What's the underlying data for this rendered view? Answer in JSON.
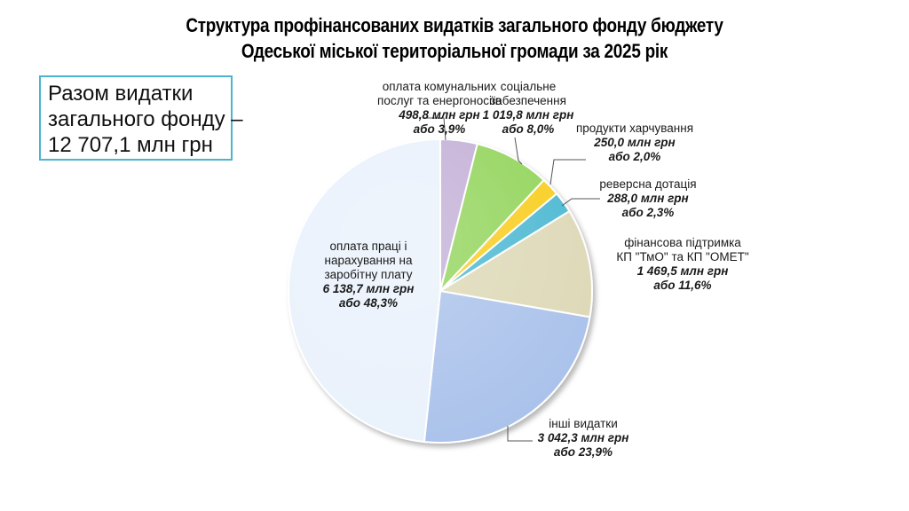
{
  "title": {
    "line1": "Структура профінансованих видатків загального фонду бюджету",
    "line2": "Одеської міської територіальної громади за 2025 рік"
  },
  "total": {
    "line1": "Разом видатки",
    "line2": "загального фонду –",
    "line3": "12 707,1 млн грн"
  },
  "chart_data": {
    "type": "pie",
    "title": "Структура профінансованих видатків загального фонду бюджету Одеської міської територіальної громади за 2025 рік",
    "unit": "млн грн",
    "slices": [
      {
        "name_lines": [
          "оплата комунальних",
          "послуг та енергоносіїв"
        ],
        "value": 498.8,
        "percent": 3.9,
        "value_text": "498,8 млн грн",
        "percent_text": "або 3,9%",
        "color": "#c3afd6"
      },
      {
        "name_lines": [
          "соціальне",
          "забезпечення"
        ],
        "value": 1019.8,
        "percent": 8.0,
        "value_text": "1 019,8 млн грн",
        "percent_text": "або 8,0%",
        "color": "#92d45a"
      },
      {
        "name_lines": [
          "продукти харчування"
        ],
        "value": 250.0,
        "percent": 2.0,
        "value_text": "250,0 млн грн",
        "percent_text": "або 2,0%",
        "color": "#f8cd1e"
      },
      {
        "name_lines": [
          "реверсна дотація"
        ],
        "value": 288.0,
        "percent": 2.3,
        "value_text": "288,0 млн грн",
        "percent_text": "або 2,3%",
        "color": "#4bb8d2"
      },
      {
        "name_lines": [
          "фінансова підтримка",
          "КП \"ТмО\" та КП \"ОМЕТ\""
        ],
        "value": 1469.5,
        "percent": 11.6,
        "value_text": "1 469,5 млн грн",
        "percent_text": "або 11,6%",
        "color": "#ddd8b6"
      },
      {
        "name_lines": [
          "інші видатки"
        ],
        "value": 3042.3,
        "percent": 23.9,
        "value_text": "3 042,3 млн грн",
        "percent_text": "або 23,9%",
        "color": "#a9c1ea"
      },
      {
        "name_lines": [
          "оплата праці і",
          "нарахування на",
          "заробітну плату"
        ],
        "value": 6138.7,
        "percent": 48.3,
        "value_text": "6 138,7 млн грн",
        "percent_text": "або 48,3%",
        "color": "#e9f1fb"
      }
    ]
  }
}
